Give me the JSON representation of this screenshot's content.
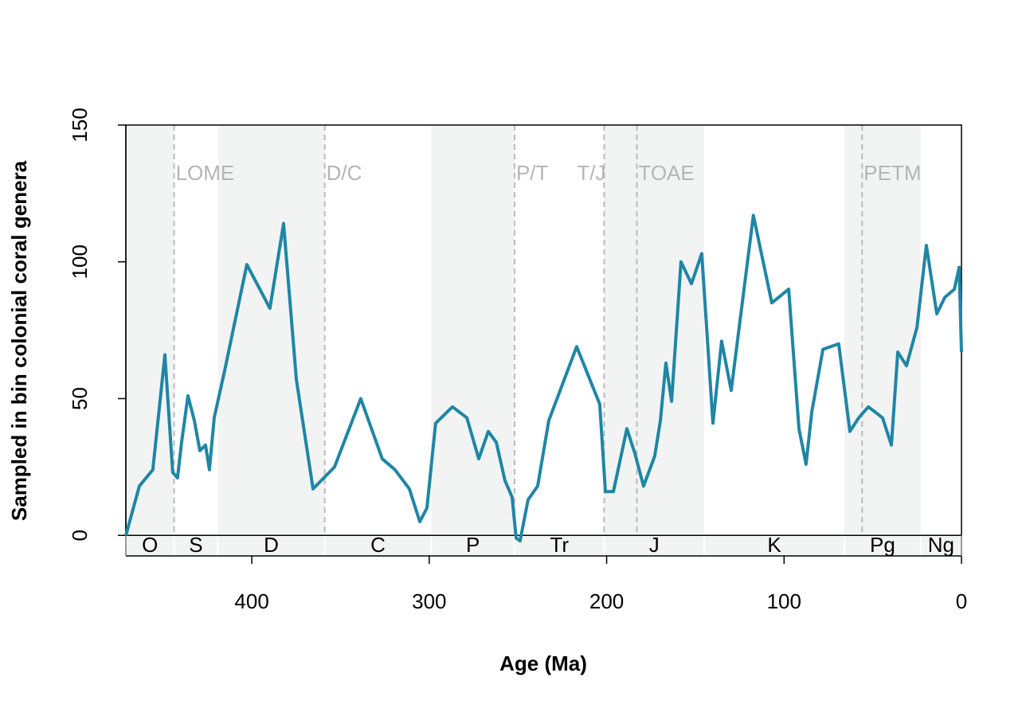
{
  "chart_data": {
    "type": "line",
    "x_label": "Age (Ma)",
    "y_label": "Sampled in bin colonial coral genera",
    "color": "#1f86a5",
    "x": [
      471,
      463.4,
      455.8,
      449,
      444.6,
      441.9,
      439.6,
      436,
      432.4,
      429.3,
      426.1,
      423.9,
      421.2,
      415.4,
      402.8,
      389.8,
      382.1,
      374.9,
      365.5,
      353.4,
      338.6,
      326.5,
      319.3,
      311.2,
      305.3,
      301.3,
      296.4,
      286.9,
      278.8,
      272.1,
      266.7,
      262.2,
      257.3,
      253.3,
      251,
      248.8,
      244.3,
      238.9,
      232.6,
      216.9,
      203.9,
      200.7,
      196.2,
      188.6,
      184.1,
      179.2,
      172.9,
      169.7,
      166.6,
      163.4,
      158.1,
      152.2,
      146.4,
      140.1,
      135.2,
      129.8,
      117.3,
      106.9,
      97.4,
      91.6,
      87.6,
      84.4,
      78.1,
      69.2,
      62.9,
      57.9,
      52.5,
      44.5,
      39.5,
      35.9,
      31,
      25.1,
      19.8,
      13.9,
      9.4,
      4,
      1.3,
      0
    ],
    "values": [
      0,
      18,
      24,
      66,
      23,
      21,
      34,
      51,
      42,
      31,
      33,
      24,
      43,
      60,
      99,
      83,
      114,
      57,
      17,
      25,
      50,
      28,
      24,
      17,
      5,
      10,
      41,
      47,
      43,
      28,
      38,
      34,
      20,
      14,
      -1,
      -2,
      13,
      18,
      42,
      69,
      48,
      16,
      16,
      39,
      30,
      18,
      29,
      42,
      63,
      49,
      100,
      92,
      103,
      41,
      71,
      53,
      117,
      85,
      90,
      39,
      26,
      45,
      68,
      70,
      38,
      43,
      47,
      43,
      33,
      67,
      62,
      76,
      106,
      81,
      87,
      90,
      98,
      67
    ],
    "xlim": [
      471,
      0
    ],
    "ylim": [
      -7.5,
      150
    ],
    "xticks": [
      400,
      300,
      200,
      100,
      0
    ],
    "yticks": [
      0,
      50,
      100,
      150
    ],
    "shade_color": "#f2f4f3",
    "periods": [
      {
        "label": "O",
        "start": 471,
        "end": 443.8,
        "shaded": true
      },
      {
        "label": "S",
        "start": 443.8,
        "end": 419.2,
        "shaded": false
      },
      {
        "label": "D",
        "start": 419.2,
        "end": 358.9,
        "shaded": true
      },
      {
        "label": "C",
        "start": 358.9,
        "end": 298.9,
        "shaded": false
      },
      {
        "label": "P",
        "start": 298.9,
        "end": 251.9,
        "shaded": true
      },
      {
        "label": "Tr",
        "start": 251.9,
        "end": 201.4,
        "shaded": false
      },
      {
        "label": "J",
        "start": 201.4,
        "end": 145,
        "shaded": true
      },
      {
        "label": "K",
        "start": 145,
        "end": 66,
        "shaded": false
      },
      {
        "label": "Pg",
        "start": 66,
        "end": 23,
        "shaded": true
      },
      {
        "label": "Ng",
        "start": 23,
        "end": 0,
        "shaded": false
      }
    ],
    "events": [
      {
        "label": "LOME",
        "age": 443.8,
        "label_side": "right"
      },
      {
        "label": "D/C",
        "age": 358.9,
        "label_side": "right"
      },
      {
        "label": "P/T",
        "age": 251.9,
        "label_side": "right"
      },
      {
        "label": "T/J",
        "age": 201.4,
        "label_side": "left"
      },
      {
        "label": "TOAE",
        "age": 183,
        "label_side": "right"
      },
      {
        "label": "PETM",
        "age": 56,
        "label_side": "right"
      }
    ]
  }
}
